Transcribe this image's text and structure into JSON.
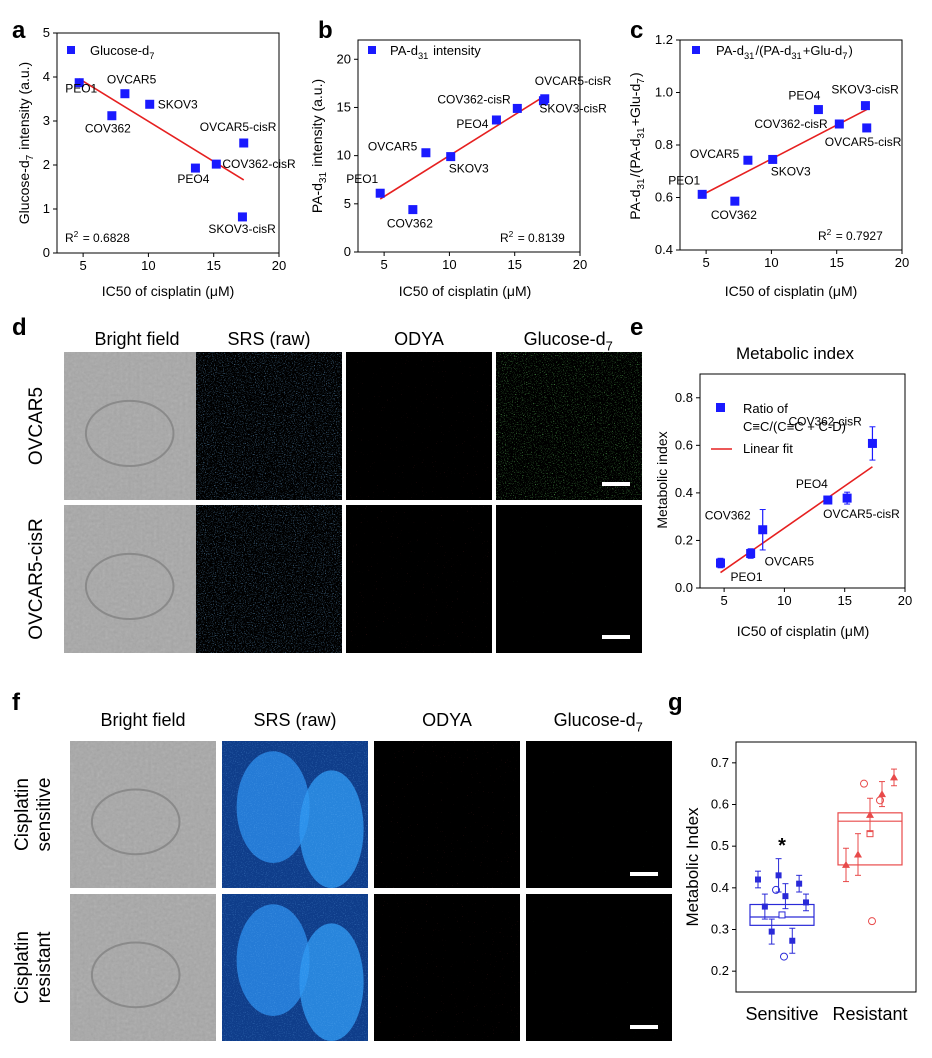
{
  "panels": {
    "a": {
      "letter": "a"
    },
    "b": {
      "letter": "b"
    },
    "c": {
      "letter": "c"
    },
    "d": {
      "letter": "d"
    },
    "e": {
      "letter": "e"
    },
    "f": {
      "letter": "f"
    },
    "g": {
      "letter": "g"
    }
  },
  "imaging_d": {
    "columns": [
      "Bright field",
      "SRS (raw)",
      "ODYA",
      "Glucose-d7"
    ],
    "rows": [
      "OVCAR5",
      "OVCAR5-cisR"
    ]
  },
  "imaging_f": {
    "columns": [
      "Bright field",
      "SRS (raw)",
      "ODYA",
      "Glucose-d7"
    ],
    "rows": [
      [
        "Cisplatin",
        "sensitive"
      ],
      [
        "Cisplatin",
        "resistant"
      ]
    ]
  },
  "colors": {
    "marker": "#1a1aff",
    "fit": "#e62020",
    "resistant": "#e84a4a",
    "sensitive": "#2a2ad8"
  },
  "chart_data": [
    {
      "id": "a",
      "type": "scatter",
      "xlabel": "IC50 of cisplatin (μM)",
      "ylabel": "Glucose-d7 intensity (a.u.)",
      "legend": "Glucose-d7",
      "xlim": [
        3,
        20
      ],
      "ylim": [
        0,
        5
      ],
      "xticks": [
        5,
        10,
        15,
        20
      ],
      "yticks": [
        0,
        1,
        2,
        3,
        4,
        5
      ],
      "r2": "R2 = 0.6828",
      "points": [
        {
          "label": "PEO1",
          "x": 4.7,
          "y": 3.87
        },
        {
          "label": "COV362",
          "x": 7.2,
          "y": 3.12
        },
        {
          "label": "OVCAR5",
          "x": 8.2,
          "y": 3.62
        },
        {
          "label": "SKOV3",
          "x": 10.1,
          "y": 3.38
        },
        {
          "label": "PEO4",
          "x": 13.6,
          "y": 1.93
        },
        {
          "label": "COV362-cisR",
          "x": 15.2,
          "y": 2.02
        },
        {
          "label": "OVCAR5-cisR",
          "x": 17.3,
          "y": 2.5
        },
        {
          "label": "SKOV3-cisR",
          "x": 17.2,
          "y": 0.82
        }
      ],
      "fit": {
        "x": [
          4.7,
          17.3
        ],
        "y": [
          3.96,
          1.66
        ]
      }
    },
    {
      "id": "b",
      "type": "scatter",
      "xlabel": "IC50 of cisplatin (μM)",
      "ylabel": "PA-d31 intensity (a.u.)",
      "legend": "PA-d31 intensity",
      "xlim": [
        3,
        20
      ],
      "ylim": [
        0,
        22
      ],
      "xticks": [
        5,
        10,
        15,
        20
      ],
      "yticks": [
        0,
        5,
        10,
        15,
        20
      ],
      "r2": "R2 = 0.8139",
      "points": [
        {
          "label": "PEO1",
          "x": 4.7,
          "y": 6.1
        },
        {
          "label": "COV362",
          "x": 7.2,
          "y": 4.4
        },
        {
          "label": "OVCAR5",
          "x": 8.2,
          "y": 10.3
        },
        {
          "label": "SKOV3",
          "x": 10.1,
          "y": 9.9
        },
        {
          "label": "PEO4",
          "x": 13.6,
          "y": 13.7
        },
        {
          "label": "COV362-cisR",
          "x": 15.2,
          "y": 14.9
        },
        {
          "label": "OVCAR5-cisR",
          "x": 17.3,
          "y": 15.9
        },
        {
          "label": "SKOV3-cisR",
          "x": 17.2,
          "y": 15.7
        }
      ],
      "fit": {
        "x": [
          4.7,
          17.3
        ],
        "y": [
          5.5,
          16.2
        ]
      }
    },
    {
      "id": "c",
      "type": "scatter",
      "xlabel": "IC50 of cisplatin (μM)",
      "ylabel": "PA-d31/(PA-d31+Glu-d7)",
      "legend": "PA-d31/(PA-d31+Glu-d7)",
      "xlim": [
        3,
        20
      ],
      "ylim": [
        0.4,
        1.2
      ],
      "xticks": [
        5,
        10,
        15,
        20
      ],
      "yticks": [
        0.4,
        0.6,
        0.8,
        1.0,
        1.2
      ],
      "r2": "R2 = 0.7927",
      "points": [
        {
          "label": "PEO1",
          "x": 4.7,
          "y": 0.612
        },
        {
          "label": "COV362",
          "x": 7.2,
          "y": 0.586
        },
        {
          "label": "OVCAR5",
          "x": 8.2,
          "y": 0.742
        },
        {
          "label": "SKOV3",
          "x": 10.1,
          "y": 0.745
        },
        {
          "label": "PEO4",
          "x": 13.6,
          "y": 0.935
        },
        {
          "label": "COV362-cisR",
          "x": 15.2,
          "y": 0.88
        },
        {
          "label": "OVCAR5-cisR",
          "x": 17.3,
          "y": 0.865
        },
        {
          "label": "SKOV3-cisR",
          "x": 17.2,
          "y": 0.95
        }
      ],
      "fit": {
        "x": [
          4.7,
          17.3
        ],
        "y": [
          0.61,
          0.935
        ]
      }
    },
    {
      "id": "e",
      "type": "scatter",
      "title": "Metabolic index",
      "xlabel": "IC50 of cisplatin (μM)",
      "ylabel": "Metabolic index",
      "legend": [
        "Ratio of",
        "C≡C/(C≡C + C-D)",
        "Linear fit"
      ],
      "xlim": [
        3,
        20
      ],
      "ylim": [
        0,
        0.9
      ],
      "xticks": [
        5,
        10,
        15,
        20
      ],
      "yticks": [
        0.0,
        0.2,
        0.4,
        0.6,
        0.8
      ],
      "points": [
        {
          "label": "PEO1",
          "x": 4.7,
          "y": 0.105,
          "err": 0.02
        },
        {
          "label": "OVCAR5",
          "x": 7.2,
          "y": 0.145,
          "err": 0.02
        },
        {
          "label": "COV362",
          "x": 8.2,
          "y": 0.245,
          "err": 0.085
        },
        {
          "label": "PEO4",
          "x": 13.6,
          "y": 0.37,
          "err": 0.015
        },
        {
          "label": "OVCAR5-cisR",
          "x": 15.2,
          "y": 0.378,
          "err": 0.025
        },
        {
          "label": "COV362-cisR",
          "x": 17.3,
          "y": 0.608,
          "err": 0.07
        }
      ],
      "fit": {
        "x": [
          4.7,
          17.3
        ],
        "y": [
          0.065,
          0.51
        ]
      }
    },
    {
      "id": "g",
      "type": "box",
      "ylabel": "Metabolic Index",
      "categories": [
        "Sensitive",
        "Resistant"
      ],
      "ylim": [
        0.15,
        0.75
      ],
      "yticks": [
        0.2,
        0.3,
        0.4,
        0.5,
        0.6,
        0.7
      ],
      "significance": "*",
      "boxes": [
        {
          "name": "Sensitive",
          "q1": 0.31,
          "median": 0.33,
          "q3": 0.36,
          "mean": 0.335,
          "whisker_low": 0.31,
          "whisker_high": 0.36,
          "points": [
            {
              "y": 0.42,
              "err": 0.02
            },
            {
              "y": 0.355,
              "err": 0.03
            },
            {
              "y": 0.295,
              "err": 0.03
            },
            {
              "y": 0.43,
              "err": 0.04
            },
            {
              "y": 0.38,
              "err": 0.03
            },
            {
              "y": 0.273,
              "err": 0.03
            },
            {
              "y": 0.41,
              "err": 0.02
            },
            {
              "y": 0.365,
              "err": 0.02
            }
          ],
          "outliers": [
            0.395,
            0.235
          ]
        },
        {
          "name": "Resistant",
          "q1": 0.455,
          "median": 0.56,
          "q3": 0.58,
          "mean": 0.53,
          "whisker_low": 0.455,
          "whisker_high": 0.58,
          "points": [
            {
              "y": 0.455,
              "err": 0.04
            },
            {
              "y": 0.48,
              "err": 0.05
            },
            {
              "y": 0.575,
              "err": 0.04
            },
            {
              "y": 0.625,
              "err": 0.03
            },
            {
              "y": 0.665,
              "err": 0.02
            }
          ],
          "outliers": [
            0.65,
            0.32,
            0.61
          ]
        }
      ]
    }
  ]
}
